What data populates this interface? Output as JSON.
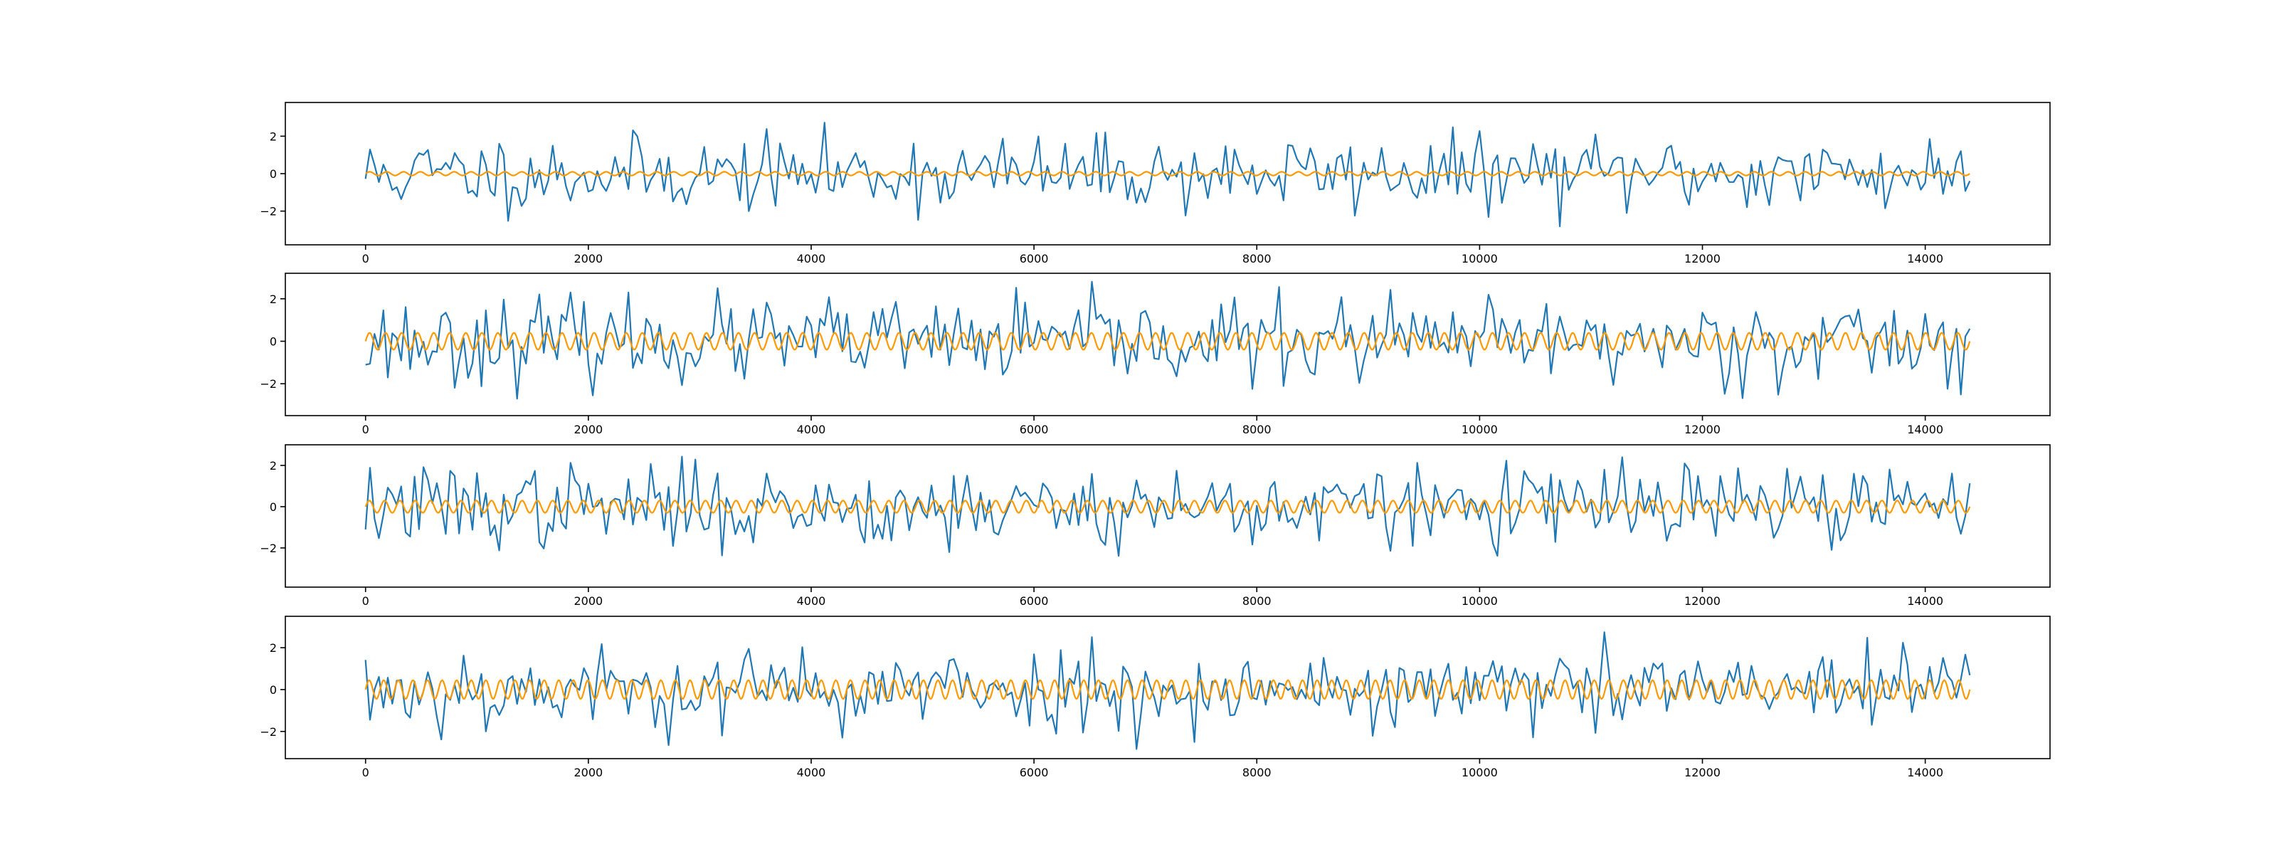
{
  "colors": {
    "noise": "#1f77b4",
    "sine": "#ff9900"
  },
  "chart_data": [
    {
      "type": "line",
      "x_range": [
        0,
        14400
      ],
      "xlim": [
        -720,
        15120
      ],
      "ylim": [
        -3.8,
        3.8
      ],
      "x_ticks": [
        0,
        2000,
        4000,
        6000,
        8000,
        10000,
        12000,
        14000
      ],
      "x_tick_labels": [
        "0",
        "2000",
        "4000",
        "6000",
        "8000",
        "10000",
        "12000",
        "14000"
      ],
      "y_ticks": [
        -2,
        0,
        2
      ],
      "y_tick_labels": [
        "−2",
        "0",
        "2"
      ],
      "points": 360,
      "series": [
        {
          "color_key": "noise",
          "kind": "noise",
          "std": 1.0,
          "seed": 11,
          "approx_range": [
            -3.5,
            3.5
          ]
        },
        {
          "color_key": "sine",
          "kind": "oscillation",
          "amplitude": 0.1,
          "cycles": 95
        }
      ]
    },
    {
      "type": "line",
      "x_range": [
        0,
        14400
      ],
      "xlim": [
        -720,
        15120
      ],
      "ylim": [
        -3.5,
        3.2
      ],
      "x_ticks": [
        0,
        2000,
        4000,
        6000,
        8000,
        10000,
        12000,
        14000
      ],
      "x_tick_labels": [
        "0",
        "2000",
        "4000",
        "6000",
        "8000",
        "10000",
        "12000",
        "14000"
      ],
      "y_ticks": [
        -2,
        0,
        2
      ],
      "y_tick_labels": [
        "−2",
        "0",
        "2"
      ],
      "points": 360,
      "series": [
        {
          "color_key": "noise",
          "kind": "noise",
          "std": 1.0,
          "seed": 23,
          "approx_range": [
            -3.2,
            2.8
          ]
        },
        {
          "color_key": "sine",
          "kind": "oscillation",
          "amplitude": 0.4,
          "cycles": 100
        }
      ]
    },
    {
      "type": "line",
      "x_range": [
        0,
        14400
      ],
      "xlim": [
        -720,
        15120
      ],
      "ylim": [
        -3.9,
        3.0
      ],
      "x_ticks": [
        0,
        2000,
        4000,
        6000,
        8000,
        10000,
        12000,
        14000
      ],
      "x_tick_labels": [
        "0",
        "2000",
        "4000",
        "6000",
        "8000",
        "10000",
        "12000",
        "14000"
      ],
      "y_ticks": [
        -2,
        0,
        2
      ],
      "y_tick_labels": [
        "−2",
        "0",
        "2"
      ],
      "points": 360,
      "series": [
        {
          "color_key": "noise",
          "kind": "noise",
          "std": 1.0,
          "seed": 37,
          "approx_range": [
            -3.6,
            2.8
          ]
        },
        {
          "color_key": "sine",
          "kind": "oscillation",
          "amplitude": 0.3,
          "cycles": 105
        }
      ]
    },
    {
      "type": "line",
      "x_range": [
        0,
        14400
      ],
      "xlim": [
        -720,
        15120
      ],
      "ylim": [
        -3.3,
        3.5
      ],
      "x_ticks": [
        0,
        2000,
        4000,
        6000,
        8000,
        10000,
        12000,
        14000
      ],
      "x_tick_labels": [
        "0",
        "2000",
        "4000",
        "6000",
        "8000",
        "10000",
        "12000",
        "14000"
      ],
      "y_ticks": [
        -2,
        0,
        2
      ],
      "y_tick_labels": [
        "−2",
        "0",
        "2"
      ],
      "points": 360,
      "series": [
        {
          "color_key": "noise",
          "kind": "noise",
          "std": 1.0,
          "seed": 53,
          "approx_range": [
            -3.0,
            3.3
          ]
        },
        {
          "color_key": "sine",
          "kind": "oscillation",
          "amplitude": 0.45,
          "cycles": 110
        }
      ]
    }
  ]
}
